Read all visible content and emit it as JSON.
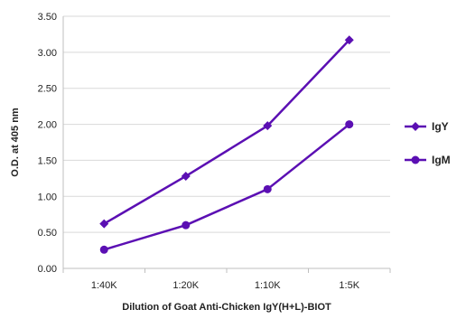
{
  "chart_data": {
    "type": "line",
    "title": "",
    "xlabel": "Dilution of Goat Anti-Chicken IgY(H+L)-BIOT",
    "ylabel": "O.D. at 405 nm",
    "categories": [
      "1:40K",
      "1:20K",
      "1:10K",
      "1:5K"
    ],
    "ylim": [
      0,
      3.5
    ],
    "yticks": [
      "0.00",
      "0.50",
      "1.00",
      "1.50",
      "2.00",
      "2.50",
      "3.00",
      "3.50"
    ],
    "grid": true,
    "legend_position": "right",
    "series": [
      {
        "name": "IgY",
        "marker": "diamond",
        "color": "#5B0FB3",
        "values": [
          0.62,
          1.28,
          1.98,
          3.17
        ]
      },
      {
        "name": "IgM",
        "marker": "circle",
        "color": "#5B0FB3",
        "values": [
          0.26,
          0.6,
          1.1,
          2.0
        ]
      }
    ]
  }
}
